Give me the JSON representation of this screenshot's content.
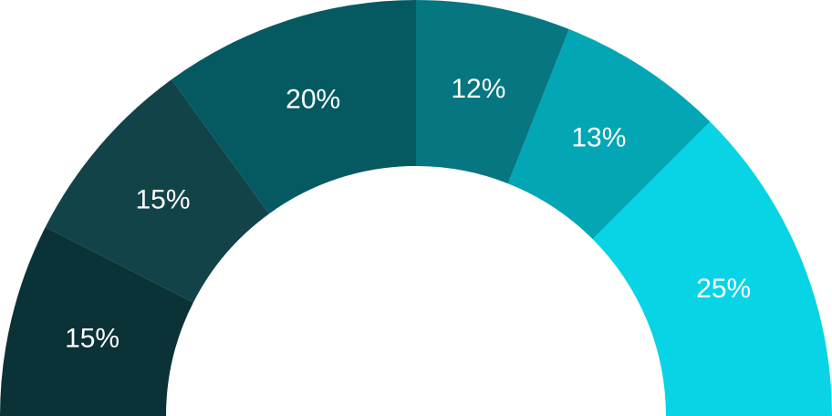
{
  "chart_data": {
    "type": "pie",
    "variant": "semi-donut",
    "title": "",
    "legend": "none",
    "slices": [
      {
        "value": 15,
        "label": "15%",
        "color": "#0b3236"
      },
      {
        "value": 15,
        "label": "15%",
        "color": "#124349"
      },
      {
        "value": 20,
        "label": "20%",
        "color": "#055a62"
      },
      {
        "value": 12,
        "label": "12%",
        "color": "#067680"
      },
      {
        "value": 13,
        "label": "13%",
        "color": "#02a6b4"
      },
      {
        "value": 25,
        "label": "25%",
        "color": "#08d4e6"
      }
    ]
  }
}
